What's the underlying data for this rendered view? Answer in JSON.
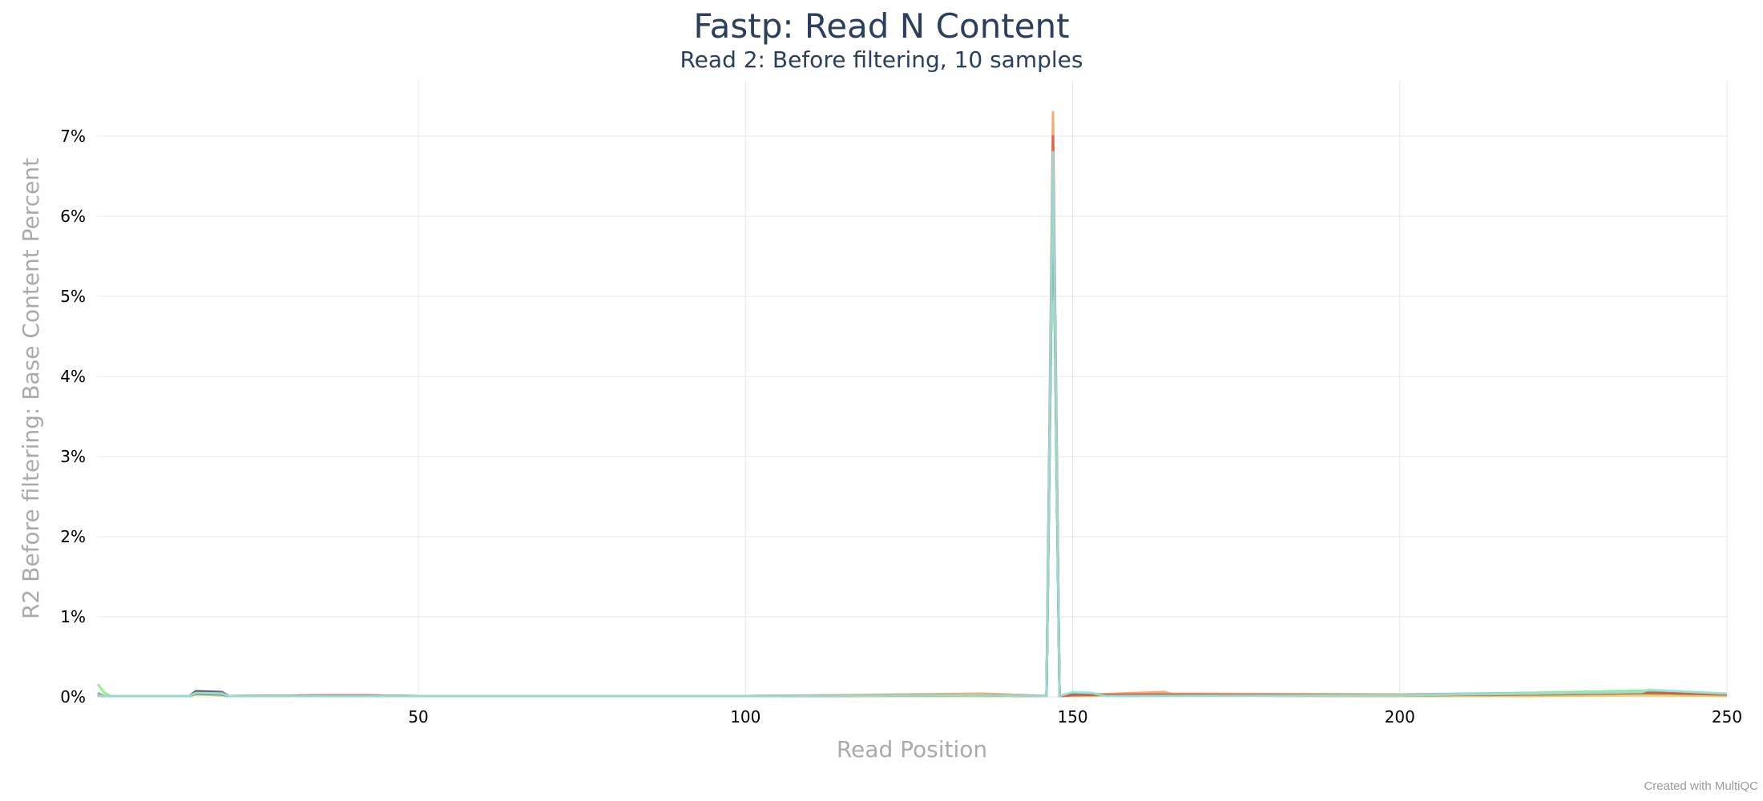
{
  "title": "Fastp: Read N Content",
  "subtitle": "Read 2: Before filtering, 10 samples",
  "credit": "Created with MultiQC",
  "chart_data": {
    "type": "line",
    "xlabel": "Read Position",
    "ylabel": "R2 Before filtering: Base Content Percent",
    "xlim": [
      1,
      250
    ],
    "ylim": [
      0,
      7.7
    ],
    "x_ticks": [
      50,
      100,
      150,
      200,
      250
    ],
    "x_tick_labels": [
      "50",
      "100",
      "150",
      "200",
      "250"
    ],
    "y_ticks": [
      0,
      1,
      2,
      3,
      4,
      5,
      6,
      7
    ],
    "y_tick_labels": [
      "0%",
      "1%",
      "2%",
      "3%",
      "4%",
      "5%",
      "6%",
      "7%"
    ],
    "grid": true,
    "legend": "none",
    "series": [
      {
        "color": "#7cb5ec",
        "points": [
          [
            1,
            0.05
          ],
          [
            2,
            0.01
          ],
          [
            15,
            0.01
          ],
          [
            16,
            0.06
          ],
          [
            20,
            0.05
          ],
          [
            21,
            0.01
          ],
          [
            40,
            0.02
          ],
          [
            50,
            0.01
          ],
          [
            100,
            0.01
          ],
          [
            135,
            0.02
          ],
          [
            146,
            0.01
          ],
          [
            147,
            6.6
          ],
          [
            148,
            0.01
          ],
          [
            150,
            0.04
          ],
          [
            160,
            0.03
          ],
          [
            200,
            0.03
          ],
          [
            220,
            0.05
          ],
          [
            238,
            0.07
          ],
          [
            250,
            0.03
          ]
        ]
      },
      {
        "color": "#434348",
        "points": [
          [
            1,
            0.02
          ],
          [
            2,
            0.01
          ],
          [
            15,
            0.01
          ],
          [
            16,
            0.07
          ],
          [
            20,
            0.06
          ],
          [
            21,
            0.01
          ],
          [
            40,
            0.02
          ],
          [
            50,
            0.01
          ],
          [
            100,
            0.01
          ],
          [
            135,
            0.02
          ],
          [
            146,
            0.01
          ],
          [
            147,
            6.5
          ],
          [
            148,
            0.01
          ],
          [
            150,
            0.03
          ],
          [
            160,
            0.02
          ],
          [
            200,
            0.02
          ],
          [
            220,
            0.04
          ],
          [
            238,
            0.06
          ],
          [
            250,
            0.02
          ]
        ]
      },
      {
        "color": "#90ed7d",
        "points": [
          [
            1,
            0.16
          ],
          [
            2,
            0.05
          ],
          [
            3,
            0.01
          ],
          [
            15,
            0.01
          ],
          [
            16,
            0.04
          ],
          [
            20,
            0.04
          ],
          [
            21,
            0.01
          ],
          [
            40,
            0.01
          ],
          [
            50,
            0.01
          ],
          [
            100,
            0.01
          ],
          [
            135,
            0.01
          ],
          [
            146,
            0.01
          ],
          [
            147,
            6.4
          ],
          [
            148,
            0.01
          ],
          [
            150,
            0.03
          ],
          [
            160,
            0.02
          ],
          [
            200,
            0.02
          ],
          [
            220,
            0.05
          ],
          [
            238,
            0.08
          ],
          [
            250,
            0.04
          ]
        ]
      },
      {
        "color": "#f7a35c",
        "points": [
          [
            1,
            0.03
          ],
          [
            2,
            0.01
          ],
          [
            15,
            0.01
          ],
          [
            16,
            0.05
          ],
          [
            20,
            0.04
          ],
          [
            21,
            0.01
          ],
          [
            40,
            0.02
          ],
          [
            50,
            0.01
          ],
          [
            100,
            0.01
          ],
          [
            136,
            0.04
          ],
          [
            140,
            0.03
          ],
          [
            146,
            0.01
          ],
          [
            147,
            7.3
          ],
          [
            148,
            0.01
          ],
          [
            150,
            0.02
          ],
          [
            160,
            0.05
          ],
          [
            164,
            0.06
          ],
          [
            165,
            0.04
          ],
          [
            200,
            0.03
          ],
          [
            220,
            0.03
          ],
          [
            238,
            0.05
          ],
          [
            250,
            0.03
          ]
        ]
      },
      {
        "color": "#8085e9",
        "points": [
          [
            1,
            0.02
          ],
          [
            2,
            0.01
          ],
          [
            15,
            0.01
          ],
          [
            16,
            0.05
          ],
          [
            20,
            0.05
          ],
          [
            21,
            0.01
          ],
          [
            40,
            0.02
          ],
          [
            50,
            0.01
          ],
          [
            100,
            0.01
          ],
          [
            135,
            0.02
          ],
          [
            146,
            0.01
          ],
          [
            147,
            6.7
          ],
          [
            148,
            0.01
          ],
          [
            150,
            0.02
          ],
          [
            160,
            0.02
          ],
          [
            200,
            0.02
          ],
          [
            220,
            0.03
          ],
          [
            238,
            0.05
          ],
          [
            250,
            0.02
          ]
        ]
      },
      {
        "color": "#f15c80",
        "points": [
          [
            1,
            0.02
          ],
          [
            2,
            0.01
          ],
          [
            15,
            0.01
          ],
          [
            16,
            0.04
          ],
          [
            20,
            0.04
          ],
          [
            21,
            0.01
          ],
          [
            40,
            0.01
          ],
          [
            50,
            0.01
          ],
          [
            100,
            0.01
          ],
          [
            135,
            0.02
          ],
          [
            146,
            0.01
          ],
          [
            147,
            6.8
          ],
          [
            148,
            0.01
          ],
          [
            150,
            0.02
          ],
          [
            160,
            0.02
          ],
          [
            200,
            0.01
          ],
          [
            220,
            0.02
          ],
          [
            238,
            0.04
          ],
          [
            250,
            0.02
          ]
        ]
      },
      {
        "color": "#e4d354",
        "points": [
          [
            1,
            0.02
          ],
          [
            2,
            0.01
          ],
          [
            15,
            0.01
          ],
          [
            16,
            0.03
          ],
          [
            20,
            0.02
          ],
          [
            21,
            0.01
          ],
          [
            40,
            0.01
          ],
          [
            50,
            0.01
          ],
          [
            100,
            0.01
          ],
          [
            135,
            0.01
          ],
          [
            146,
            0.01
          ],
          [
            147,
            6.6
          ],
          [
            148,
            0.01
          ],
          [
            150,
            0.01
          ],
          [
            160,
            0.02
          ],
          [
            200,
            0.01
          ],
          [
            220,
            0.01
          ],
          [
            238,
            0.02
          ],
          [
            250,
            0.01
          ]
        ]
      },
      {
        "color": "#2b908f",
        "points": [
          [
            1,
            0.02
          ],
          [
            2,
            0.01
          ],
          [
            15,
            0.01
          ],
          [
            16,
            0.04
          ],
          [
            20,
            0.03
          ],
          [
            21,
            0.01
          ],
          [
            40,
            0.01
          ],
          [
            50,
            0.01
          ],
          [
            100,
            0.01
          ],
          [
            135,
            0.02
          ],
          [
            146,
            0.01
          ],
          [
            147,
            6.5
          ],
          [
            148,
            0.01
          ],
          [
            150,
            0.03
          ],
          [
            160,
            0.02
          ],
          [
            200,
            0.02
          ],
          [
            220,
            0.03
          ],
          [
            238,
            0.05
          ],
          [
            250,
            0.03
          ]
        ]
      },
      {
        "color": "#e05a4c",
        "points": [
          [
            1,
            0.03
          ],
          [
            2,
            0.01
          ],
          [
            15,
            0.01
          ],
          [
            16,
            0.05
          ],
          [
            20,
            0.04
          ],
          [
            21,
            0.01
          ],
          [
            40,
            0.02
          ],
          [
            50,
            0.01
          ],
          [
            100,
            0.01
          ],
          [
            135,
            0.02
          ],
          [
            146,
            0.01
          ],
          [
            147,
            7.0
          ],
          [
            148,
            0.01
          ],
          [
            150,
            0.02
          ],
          [
            160,
            0.03
          ],
          [
            200,
            0.02
          ],
          [
            220,
            0.03
          ],
          [
            238,
            0.05
          ],
          [
            250,
            0.03
          ]
        ]
      },
      {
        "color": "#91e8e1",
        "points": [
          [
            1,
            0.02
          ],
          [
            2,
            0.01
          ],
          [
            15,
            0.01
          ],
          [
            16,
            0.05
          ],
          [
            20,
            0.04
          ],
          [
            21,
            0.01
          ],
          [
            40,
            0.01
          ],
          [
            50,
            0.01
          ],
          [
            100,
            0.01
          ],
          [
            135,
            0.02
          ],
          [
            146,
            0.01
          ],
          [
            147,
            6.8
          ],
          [
            148,
            0.01
          ],
          [
            150,
            0.06
          ],
          [
            153,
            0.05
          ],
          [
            155,
            0.01
          ],
          [
            200,
            0.02
          ],
          [
            220,
            0.04
          ],
          [
            237,
            0.06
          ],
          [
            238,
            0.09
          ],
          [
            250,
            0.04
          ]
        ]
      }
    ]
  }
}
